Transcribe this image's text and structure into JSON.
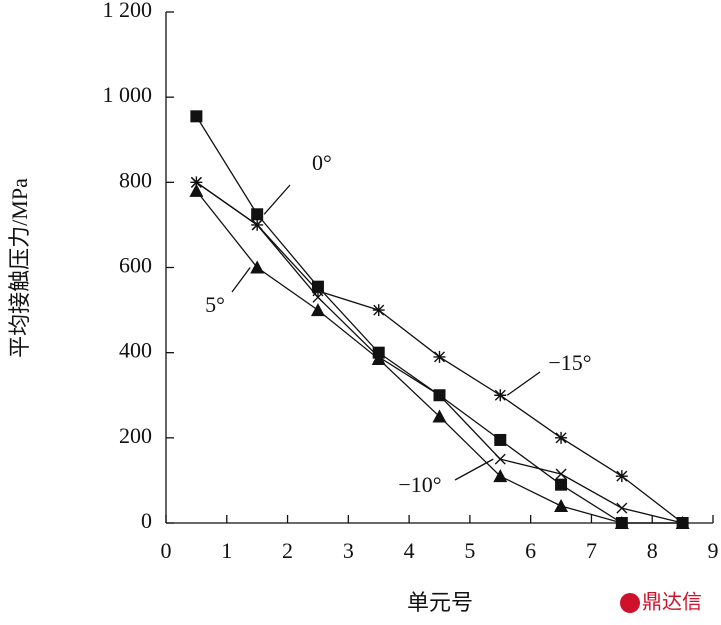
{
  "chart_data": {
    "type": "line",
    "x_label": "单元号",
    "y_label": "平均接触压力/MPa",
    "x": [
      0.5,
      1.5,
      2.5,
      3.5,
      4.5,
      5.5,
      6.5,
      7.5,
      8.5
    ],
    "series": [
      {
        "name": "0°",
        "marker": "square",
        "color": "#111111",
        "values": [
          955,
          725,
          555,
          400,
          300,
          195,
          90,
          0,
          0
        ]
      },
      {
        "name": "5°",
        "marker": "triangle",
        "color": "#111111",
        "values": [
          780,
          600,
          500,
          385,
          250,
          110,
          40,
          0,
          0
        ]
      },
      {
        "name": "−10°",
        "marker": "cross",
        "color": "#111111",
        "values": [
          800,
          700,
          530,
          390,
          300,
          150,
          115,
          35,
          0
        ]
      },
      {
        "name": "−15°",
        "marker": "star",
        "color": "#111111",
        "values": [
          800,
          700,
          545,
          500,
          390,
          300,
          200,
          110,
          0
        ]
      }
    ],
    "xlim": [
      0,
      9
    ],
    "xticks": [
      0,
      1,
      2,
      3,
      4,
      5,
      6,
      7,
      8,
      9
    ],
    "ylim": [
      0,
      1200
    ],
    "yticks": [
      0,
      200,
      400,
      600,
      800,
      {
        "value": 1000,
        "label": "1 000"
      },
      {
        "value": 1200,
        "label": "1 200"
      }
    ],
    "grid": false,
    "watermark": "鼎达信"
  }
}
